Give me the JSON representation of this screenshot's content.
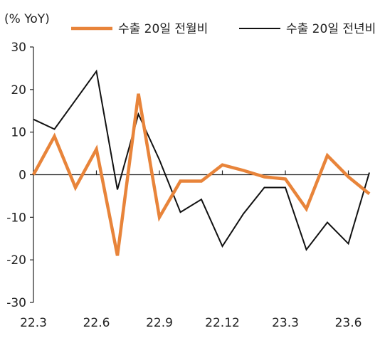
{
  "chart_data": {
    "type": "line",
    "unit_label": "(% YoY)",
    "categories": [
      "22.3",
      "22.4",
      "22.5",
      "22.6",
      "22.7",
      "22.8",
      "22.9",
      "22.10",
      "22.11",
      "22.12",
      "23.1",
      "23.2",
      "23.3",
      "23.4",
      "23.5",
      "23.6",
      "23.7"
    ],
    "x_tick_labels": [
      "22.3",
      "22.6",
      "22.9",
      "22.12",
      "23.3",
      "23.6"
    ],
    "ylim": [
      -30,
      30
    ],
    "y_ticks": [
      -30,
      -20,
      -10,
      0,
      10,
      20,
      30
    ],
    "y_tick_labels": [
      "-30",
      "-20",
      "-10",
      "0",
      "10",
      "20",
      "30"
    ],
    "series": [
      {
        "name": "수출 20일 전월비",
        "color": "#E8843A",
        "values": [
          0,
          9,
          -3,
          6,
          -19,
          19,
          -10,
          -1.5,
          -1.5,
          2.3,
          1,
          -0.5,
          -1,
          -8,
          4.5,
          -0.5,
          -4.5
        ]
      },
      {
        "name": "수출 20일 전년비",
        "color": "#111111",
        "values": [
          13,
          10.7,
          17.5,
          24.3,
          -3.5,
          14.2,
          3.5,
          -8.8,
          -5.8,
          -16.8,
          -9.2,
          -3,
          -3,
          -17.6,
          -11.2,
          -16.2,
          0.5
        ]
      }
    ],
    "grid": false,
    "legend_position": "top"
  }
}
